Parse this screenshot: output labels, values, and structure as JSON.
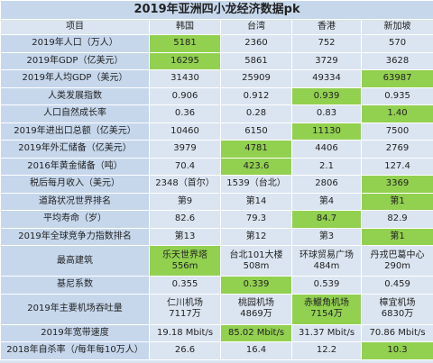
{
  "title": "2019年亚洲四小龙经济数据pk",
  "table": {
    "header": [
      "项目",
      "韩国",
      "台湾",
      "香港",
      "新加坡"
    ],
    "rows": [
      [
        "2019年人口（万人）",
        "5181",
        "2360",
        "752",
        "570"
      ],
      [
        "2019年GDP（亿美元）",
        "16295",
        "5861",
        "3729",
        "3628"
      ],
      [
        "2019年人均GDP（美元）",
        "31430",
        "25909",
        "49334",
        "63987"
      ],
      [
        "人类发展指数",
        "0.906",
        "0.912",
        "0.939",
        "0.935"
      ],
      [
        "人口自然成长率",
        "0.36",
        "0.28",
        "0.83",
        "1.40"
      ],
      [
        "2019年进出口总额（亿美元）",
        "10460",
        "6150",
        "11130",
        "7500"
      ],
      [
        "2019年外汇储备（亿美元）",
        "3979",
        "4781",
        "4406",
        "2769"
      ],
      [
        "2016年黄金储备（吨）",
        "70.4",
        "423.6",
        "2.1",
        "127.4"
      ],
      [
        "税后每月收入（美元）",
        "2348（首尔）",
        "1539（台北）",
        "2806",
        "3369"
      ],
      [
        "道路状况世界排名",
        "第9",
        "第14",
        "第4",
        "第1"
      ],
      [
        "平均寿命（岁）",
        "82.6",
        "79.3",
        "84.7",
        "82.9"
      ],
      [
        "2019年全球竞争力指数排名",
        "第13",
        "第12",
        "第3",
        "第1"
      ],
      [
        "最高建筑",
        [
          "乐天世界塔",
          "556m"
        ],
        [
          "台北101大楼",
          "508m"
        ],
        [
          "环球贸易广场",
          "484m"
        ],
        [
          "丹戎巴葛中心",
          "290m"
        ]
      ],
      [
        "基尼系数",
        "0.355",
        "0.339",
        "0.539",
        "0.459"
      ],
      [
        "2019年主要机场吞吐量",
        [
          "仁川机场",
          "7117万"
        ],
        [
          "桃园机场",
          "4869万"
        ],
        [
          "赤鱲角机场",
          "7154万"
        ],
        [
          "樟宜机场",
          "6830万"
        ]
      ],
      [
        "2019年宽带速度",
        "19.18 Mbit/s",
        "85.02 Mbit/s",
        "31.37 Mbit/s",
        "70.86 Mbit/s"
      ],
      [
        "2018年自杀率（/每年每10万人）",
        "26.6",
        "16.4",
        "12.2",
        "10.3"
      ]
    ]
  }
}
